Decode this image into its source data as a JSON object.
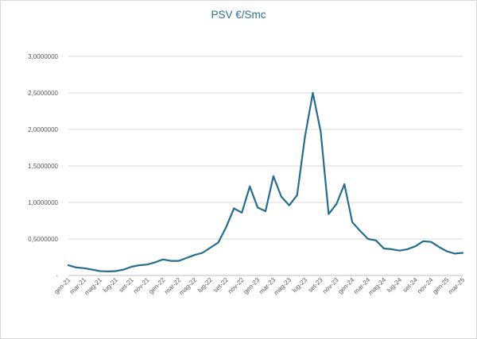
{
  "chart_data": {
    "type": "line",
    "title": "PSV €/Smc",
    "xlabel": "",
    "ylabel": "",
    "ylim": [
      0,
      3
    ],
    "y_ticks": [
      "-",
      "0,5000000",
      "1,0000000",
      "1,5000000",
      "2,0000000",
      "2,5000000",
      "3,0000000"
    ],
    "grid": "horizontal",
    "legend": "none",
    "line_color": "#256d8c",
    "x": [
      "gen-21",
      "feb-21",
      "mar-21",
      "apr-21",
      "mag-21",
      "giu-21",
      "lug-21",
      "ago-21",
      "set-21",
      "ott-21",
      "nov-21",
      "dic-21",
      "gen-22",
      "feb-22",
      "mar-22",
      "apr-22",
      "mag-22",
      "giu-22",
      "lug-22",
      "ago-22",
      "set-22",
      "ott-22",
      "nov-22",
      "dic-22",
      "gen-23",
      "feb-23",
      "mar-23",
      "apr-23",
      "mag-23",
      "giu-23",
      "lug-23",
      "ago-23",
      "set-23",
      "ott-23",
      "nov-23",
      "dic-23",
      "gen-24",
      "feb-24",
      "mar-24",
      "apr-24",
      "mag-24",
      "giu-24",
      "lug-24",
      "ago-24",
      "set-24",
      "ott-24",
      "nov-24",
      "dic-24",
      "gen-25",
      "feb-25",
      "mar-25"
    ],
    "x_tick_labels": [
      "gen-21",
      "mar-21",
      "mag-21",
      "lug-21",
      "set-21",
      "nov-21",
      "gen-22",
      "mar-22",
      "mag-22",
      "lug-22",
      "set-22",
      "nov-22",
      "gen-23",
      "mar-23",
      "mag-23",
      "lug-23",
      "set-23",
      "nov-23",
      "gen-24",
      "mar-24",
      "mag-24",
      "lug-24",
      "set-24",
      "nov-24",
      "gen-25",
      "mar-25"
    ],
    "values": [
      0.14,
      0.11,
      0.1,
      0.08,
      0.06,
      0.055,
      0.06,
      0.08,
      0.12,
      0.14,
      0.15,
      0.18,
      0.22,
      0.2,
      0.2,
      0.24,
      0.28,
      0.31,
      0.38,
      0.45,
      0.66,
      0.92,
      0.86,
      1.22,
      0.93,
      0.88,
      1.36,
      1.08,
      0.96,
      1.1,
      1.9,
      2.5,
      1.97,
      0.84,
      0.98,
      1.25,
      0.73,
      0.61,
      0.5,
      0.48,
      0.37,
      0.36,
      0.34,
      0.36,
      0.4,
      0.47,
      0.46,
      0.39,
      0.33,
      0.3,
      0.31
    ]
  }
}
